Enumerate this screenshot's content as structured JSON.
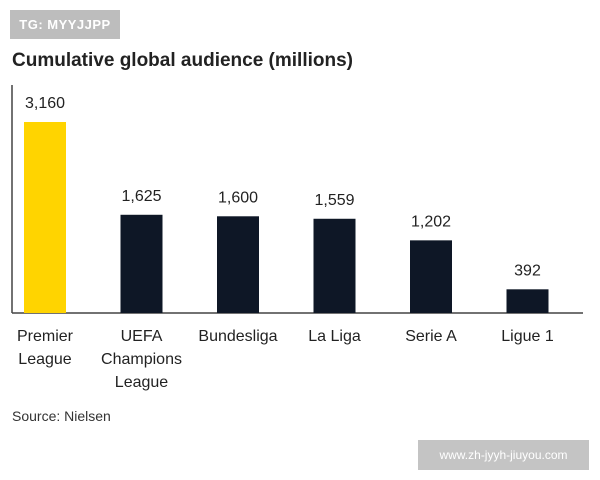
{
  "watermark_top": "TG: MYYJJPP",
  "watermark_bottom": "www.zh-jyyh-jiuyou.com",
  "source": "Source: Nielsen",
  "colors": {
    "highlight": "#FFD400",
    "bar": "#0E1726",
    "axis": "#444444",
    "text": "#222222"
  },
  "chart_data": {
    "type": "bar",
    "title": "Cumulative global audience (millions)",
    "categories": [
      [
        "Premier",
        "League"
      ],
      [
        "UEFA",
        "Champions",
        "League"
      ],
      [
        "Bundesliga"
      ],
      [
        "La Liga"
      ],
      [
        "Serie A"
      ],
      [
        "Ligue 1"
      ]
    ],
    "values": [
      3160,
      1625,
      1600,
      1559,
      1202,
      392
    ],
    "value_labels": [
      "3,160",
      "1,625",
      "1,600",
      "1,559",
      "1,202",
      "392"
    ],
    "highlight_index": 0,
    "ylim": [
      0,
      3160
    ],
    "xlabel": "",
    "ylabel": "",
    "grid": false,
    "legend": "none"
  }
}
